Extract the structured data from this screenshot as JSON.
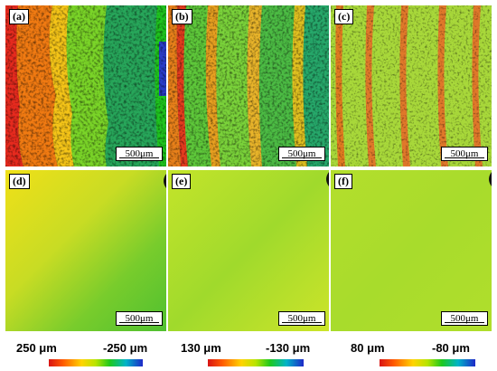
{
  "panels": [
    {
      "tag": "(a)",
      "scale": "500μm"
    },
    {
      "tag": "(b)",
      "scale": "500μm"
    },
    {
      "tag": "(c)",
      "scale": "500μm"
    },
    {
      "tag": "(d)",
      "scale": "500μm"
    },
    {
      "tag": "(e)",
      "scale": "500μm"
    },
    {
      "tag": "(f)",
      "scale": "500μm"
    }
  ],
  "legends": [
    {
      "left": "250 μm",
      "right": "-250 μm"
    },
    {
      "left": "130 μm",
      "right": "-130 μm"
    },
    {
      "left": "80 μm",
      "right": "-80 μm"
    }
  ],
  "colorbar_colors": [
    "#d81414",
    "#ff5a00",
    "#ffd400",
    "#b8e400",
    "#1ec81e",
    "#00b4c8",
    "#1e28c8"
  ]
}
